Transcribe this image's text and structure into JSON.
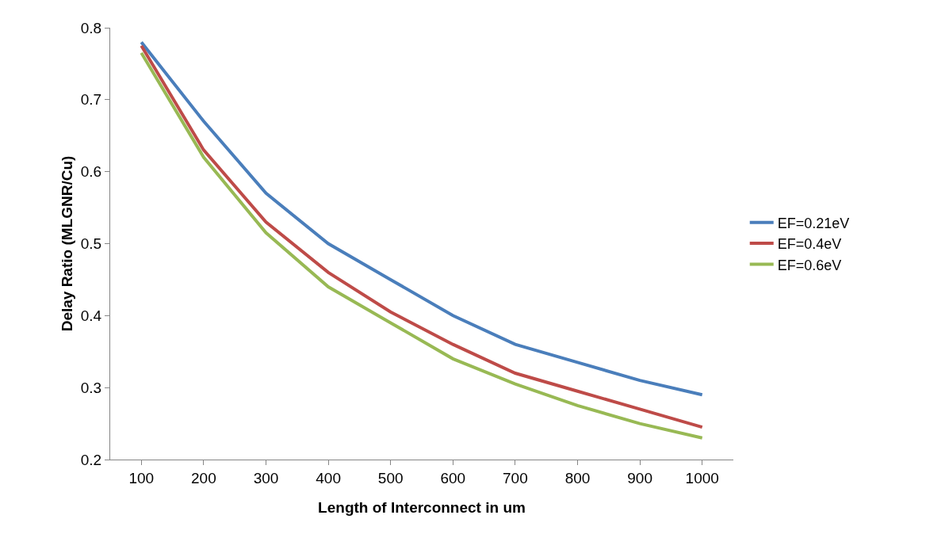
{
  "chart_data": {
    "type": "line",
    "xlabel": "Length of Interconnect in um",
    "ylabel": "Delay Ratio (MLGNR/Cu)",
    "categories": [
      "100",
      "200",
      "300",
      "400",
      "500",
      "600",
      "700",
      "800",
      "900",
      "1000"
    ],
    "series": [
      {
        "name": "EF=0.21eV",
        "color": "#4a7ebb",
        "values": [
          0.78,
          0.67,
          0.57,
          0.5,
          0.45,
          0.4,
          0.36,
          0.335,
          0.31,
          0.29
        ]
      },
      {
        "name": "EF=0.4eV",
        "color": "#be4b48",
        "values": [
          0.775,
          0.63,
          0.53,
          0.46,
          0.405,
          0.36,
          0.32,
          0.295,
          0.27,
          0.245
        ]
      },
      {
        "name": "EF=0.6eV",
        "color": "#98b954",
        "values": [
          0.765,
          0.62,
          0.515,
          0.44,
          0.39,
          0.34,
          0.305,
          0.275,
          0.25,
          0.23
        ]
      }
    ],
    "ylim": [
      0.2,
      0.8
    ],
    "yticks": [
      0.2,
      0.3,
      0.4,
      0.5,
      0.6,
      0.7,
      0.8
    ],
    "grid": false,
    "legend": "right",
    "marker": "none",
    "line_style": "solid"
  }
}
